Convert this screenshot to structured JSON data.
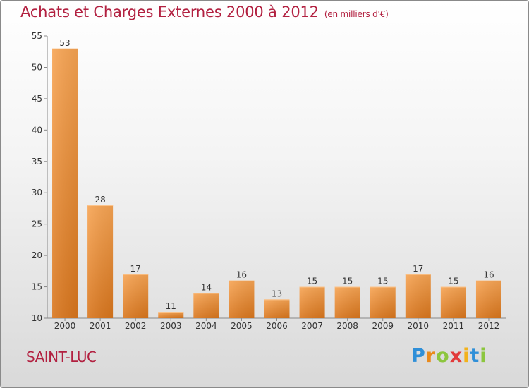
{
  "header": {
    "title": "Achats et Charges Externes 2000 à 2012",
    "unit": "(en milliers d'€)"
  },
  "commune": "SAINT-LUC",
  "logo": {
    "letters": [
      "P",
      "r",
      "o",
      "x",
      "i",
      "t",
      "i"
    ],
    "colors": [
      "#2f8fd8",
      "#e98a1b",
      "#8cc63e",
      "#e23b3b",
      "#f2b21b",
      "#2f8fd8",
      "#8cc63e"
    ]
  },
  "chart_data": {
    "type": "bar",
    "title": "Achats et Charges Externes 2000 à 2012",
    "subtitle": "(en milliers d'€)",
    "categories": [
      "2000",
      "2001",
      "2002",
      "2003",
      "2004",
      "2005",
      "2006",
      "2007",
      "2008",
      "2009",
      "2010",
      "2011",
      "2012"
    ],
    "values": [
      53,
      28,
      17,
      11,
      14,
      16,
      13,
      15,
      15,
      15,
      17,
      15,
      16
    ],
    "ylim": [
      10,
      55
    ],
    "yticks": [
      10,
      15,
      20,
      25,
      30,
      35,
      40,
      45,
      50,
      55
    ],
    "grid": false,
    "bar_color": "#f0963a"
  }
}
